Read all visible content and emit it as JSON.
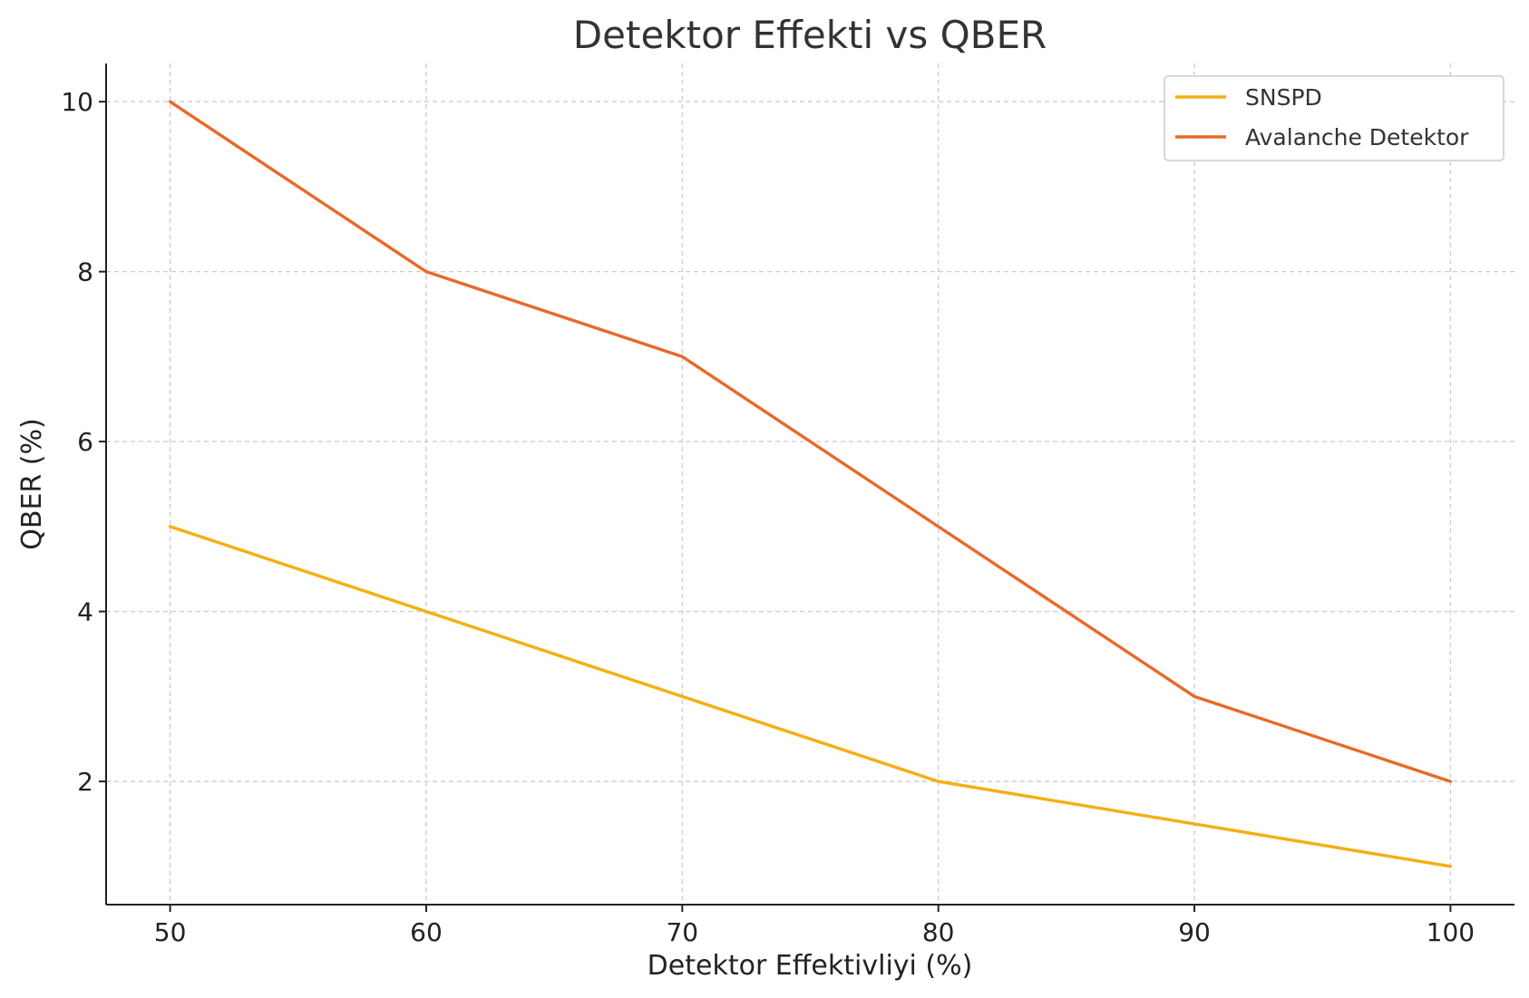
{
  "chart_data": {
    "type": "line",
    "title": "Detektor Effekti vs QBER",
    "xlabel": "Detektor Effektivliyi (%)",
    "ylabel": "QBER (%)",
    "x": [
      50,
      60,
      70,
      80,
      90,
      100
    ],
    "xlim": [
      47.5,
      102.5
    ],
    "ylim": [
      0.55,
      10.45
    ],
    "xticks": [
      50,
      60,
      70,
      80,
      90,
      100
    ],
    "yticks": [
      2,
      4,
      6,
      8,
      10
    ],
    "grid": true,
    "legend_position": "top-right",
    "series": [
      {
        "name": "SNSPD",
        "color": "#F5AE12",
        "values": [
          5,
          4,
          3,
          2,
          1.5,
          1
        ]
      },
      {
        "name": "Avalanche Detektor",
        "color": "#E8692A",
        "values": [
          10,
          8,
          7,
          5,
          3,
          2
        ]
      }
    ]
  }
}
